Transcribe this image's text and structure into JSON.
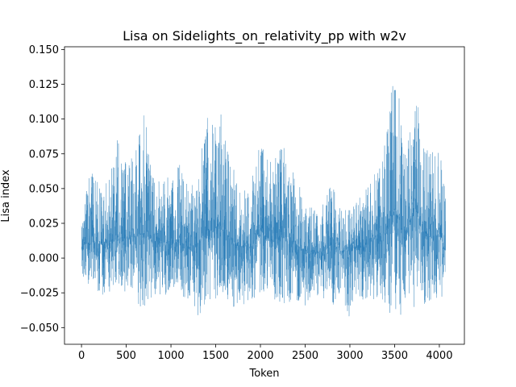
{
  "chart_data": {
    "type": "line",
    "title": "Lisa on Sidelights_on_relativity_pp with w2v",
    "xlabel": "Token",
    "ylabel": "Lisa index",
    "xlim": [
      -190,
      4280
    ],
    "ylim": [
      -0.062,
      0.152
    ],
    "xticks": [
      0,
      500,
      1000,
      1500,
      2000,
      2500,
      3000,
      3500,
      4000
    ],
    "xtick_labels": [
      "0",
      "500",
      "1000",
      "1500",
      "2000",
      "2500",
      "3000",
      "3500",
      "4000"
    ],
    "yticks": [
      -0.05,
      -0.025,
      0.0,
      0.025,
      0.05,
      0.075,
      0.1,
      0.125,
      0.15
    ],
    "ytick_labels": [
      "−0.050",
      "−0.025",
      "0.000",
      "0.025",
      "0.050",
      "0.075",
      "0.100",
      "0.125",
      "0.150"
    ],
    "grid": false,
    "series": [
      {
        "color": "#1f77b4",
        "x_start": 0,
        "x_end": 4070,
        "envelope_x": [
          0,
          100,
          200,
          300,
          400,
          500,
          600,
          700,
          800,
          900,
          1000,
          1100,
          1200,
          1300,
          1400,
          1500,
          1550,
          1600,
          1700,
          1800,
          1900,
          2000,
          2100,
          2200,
          2300,
          2400,
          2500,
          2600,
          2700,
          2800,
          2900,
          3000,
          3100,
          3200,
          3300,
          3400,
          3500,
          3550,
          3600,
          3700,
          3750,
          3800,
          3900,
          4000,
          4070
        ],
        "envelope_high": [
          0.035,
          0.063,
          0.055,
          0.06,
          0.085,
          0.07,
          0.078,
          0.108,
          0.06,
          0.06,
          0.057,
          0.07,
          0.05,
          0.06,
          0.105,
          0.095,
          0.122,
          0.09,
          0.065,
          0.052,
          0.055,
          0.098,
          0.068,
          0.082,
          0.08,
          0.06,
          0.04,
          0.035,
          0.04,
          0.055,
          0.035,
          0.035,
          0.045,
          0.055,
          0.07,
          0.085,
          0.14,
          0.115,
          0.075,
          0.1,
          0.12,
          0.085,
          0.075,
          0.086,
          0.045
        ],
        "envelope_low": [
          -0.015,
          -0.02,
          -0.03,
          -0.025,
          -0.02,
          -0.025,
          -0.03,
          -0.04,
          -0.025,
          -0.03,
          -0.025,
          -0.028,
          -0.035,
          -0.046,
          -0.03,
          -0.035,
          -0.03,
          -0.025,
          -0.04,
          -0.035,
          -0.03,
          -0.03,
          -0.025,
          -0.035,
          -0.035,
          -0.03,
          -0.035,
          -0.025,
          -0.03,
          -0.035,
          -0.025,
          -0.046,
          -0.03,
          -0.03,
          -0.03,
          -0.035,
          -0.052,
          -0.04,
          -0.045,
          -0.03,
          -0.048,
          -0.04,
          -0.03,
          -0.04,
          -0.015
        ],
        "envelope_mean": [
          0.008,
          0.012,
          0.01,
          0.012,
          0.015,
          0.014,
          0.015,
          0.018,
          0.012,
          0.012,
          0.01,
          0.012,
          0.008,
          0.01,
          0.02,
          0.02,
          0.025,
          0.02,
          0.01,
          0.008,
          0.008,
          0.02,
          0.012,
          0.015,
          0.014,
          0.01,
          0.005,
          0.004,
          0.005,
          0.01,
          0.005,
          0.005,
          0.008,
          0.01,
          0.015,
          0.018,
          0.035,
          0.03,
          0.015,
          0.03,
          0.035,
          0.02,
          0.015,
          0.018,
          0.005
        ]
      }
    ]
  }
}
